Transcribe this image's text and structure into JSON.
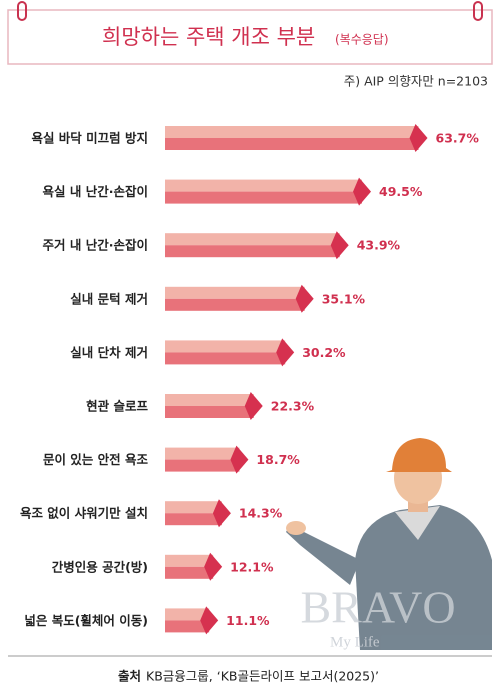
{
  "chart_data": {
    "type": "bar",
    "title": "희망하는 주택 개조 부분",
    "subtitle": "(복수응답)",
    "note": "주) AIP 의향자만 n=2103",
    "categories": [
      "욕실 바닥 미끄럼 방지",
      "욕실 내 난간·손잡이",
      "주거 내 난간·손잡이",
      "실내 문턱 제거",
      "실내 단차 제거",
      "현관 슬로프",
      "문이 있는 안전 욕조",
      "욕조 없이 샤워기만 설치",
      "간병인용 공간(방)",
      "넓은 복도(휠체어 이동)"
    ],
    "values": [
      63.7,
      49.5,
      43.9,
      35.1,
      30.2,
      22.3,
      18.7,
      14.3,
      12.1,
      11.1
    ],
    "value_labels": [
      "63.7%",
      "49.5%",
      "43.9%",
      "35.1%",
      "30.2%",
      "22.3%",
      "18.7%",
      "14.3%",
      "12.1%",
      "11.1%"
    ],
    "color": "#e8727a",
    "watermark": "BRAVO",
    "watermark_sub": "My Life",
    "source_label": "출처",
    "source": "KB금융그룹, ‘KB골든라이프 보고서(2025)’"
  }
}
